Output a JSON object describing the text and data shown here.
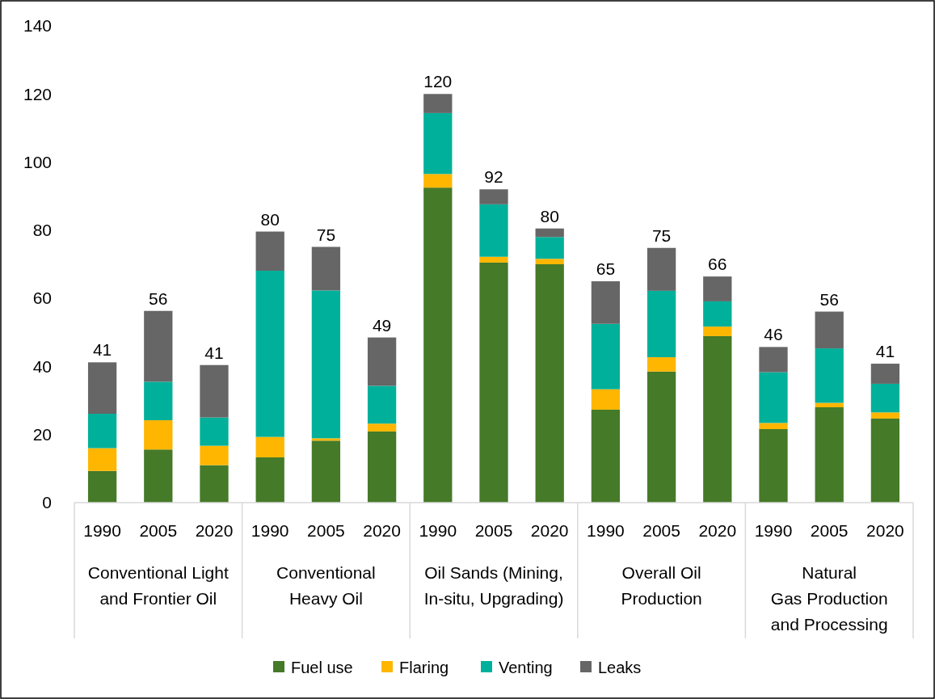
{
  "chart_data": {
    "type": "bar",
    "stacked": true,
    "categories": [
      "1990",
      "2005",
      "2020",
      "1990",
      "2005",
      "2020",
      "1990",
      "2005",
      "2020",
      "1990",
      "2005",
      "2020",
      "1990",
      "2005",
      "2020"
    ],
    "annotations": [
      "Conventional Light and Frontier Oil",
      "Conventional Heavy Oil",
      "Oil Sands (Mining, In-situ, Upgrading)",
      "Overall Oil Production",
      "Natural Gas Production and Processing"
    ],
    "series": [
      {
        "name": "Fuel use",
        "color": "#457a28",
        "values": [
          9.3,
          15.6,
          11.0,
          13.3,
          18.2,
          20.9,
          92.5,
          70.5,
          70.0,
          27.3,
          38.5,
          48.9,
          21.6,
          28.0,
          24.7
        ]
      },
      {
        "name": "Flaring",
        "color": "#ffb600",
        "values": [
          6.7,
          8.6,
          5.7,
          6.0,
          0.7,
          2.3,
          4.0,
          1.7,
          1.6,
          6.0,
          4.2,
          2.8,
          1.8,
          1.3,
          1.8
        ]
      },
      {
        "name": "Venting",
        "color": "#00b09a",
        "values": [
          10.1,
          11.3,
          8.3,
          48.8,
          43.4,
          11.1,
          17.9,
          15.4,
          6.4,
          19.2,
          19.5,
          7.4,
          14.9,
          16.0,
          8.4
        ]
      },
      {
        "name": "Leaks",
        "color": "#666666",
        "values": [
          15.1,
          20.8,
          15.4,
          11.5,
          12.8,
          14.2,
          5.6,
          4.4,
          2.5,
          12.5,
          12.6,
          7.3,
          7.4,
          10.8,
          5.9
        ]
      }
    ],
    "totals": [
      "41",
      "56",
      "41",
      "80",
      "75",
      "49",
      "120",
      "92",
      "80",
      "65",
      "75",
      "66",
      "46",
      "56",
      "41"
    ],
    "ylim": [
      0,
      140
    ],
    "yticks": [
      0,
      20,
      40,
      60,
      80,
      100,
      120,
      140
    ],
    "grid": false,
    "legend": "bottom"
  }
}
